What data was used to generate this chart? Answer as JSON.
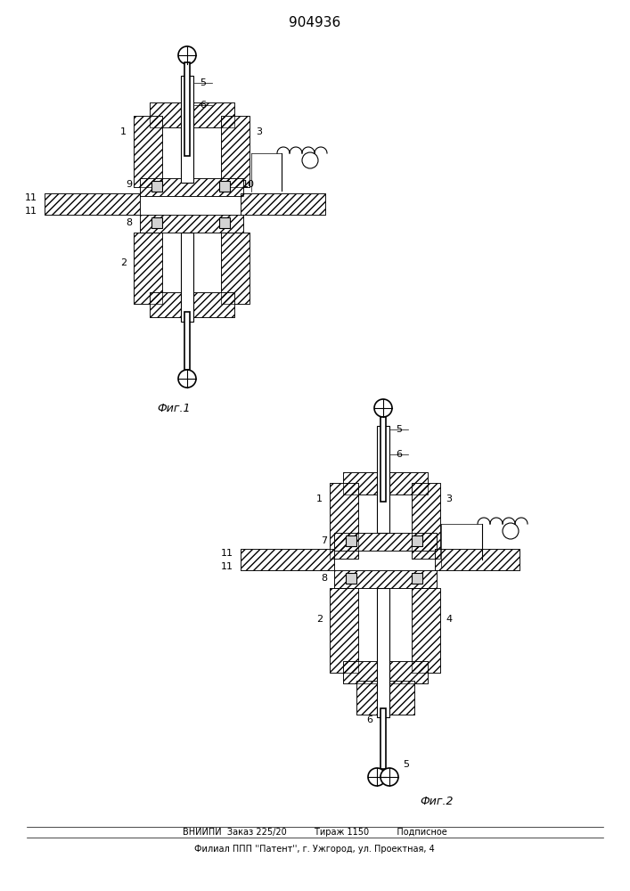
{
  "title": "904936",
  "title_fontsize": 11,
  "fig1_label": "Фиг.1",
  "fig2_label": "Фиг.2",
  "footer_line1": "ВНИИПИ  Заказ 225/20          Тираж 1150          Подписное",
  "footer_line2": "Филиал ППП ''Патент'', г. Ужгород, ул. Проектная, 4",
  "bg_color": "#ffffff",
  "hatch_color": "#000000",
  "line_color": "#000000"
}
